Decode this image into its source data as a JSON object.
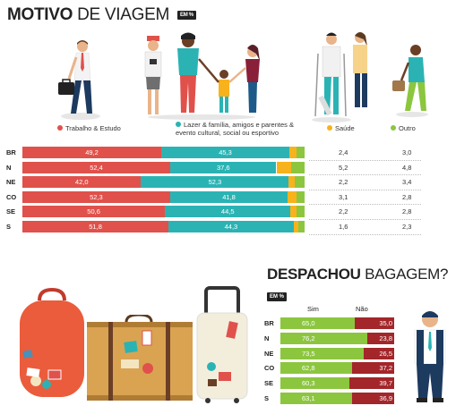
{
  "colors": {
    "trabalho": "#e0514b",
    "lazer": "#2bb3b4",
    "saude": "#f7b21c",
    "outro": "#8cc63f",
    "sim": "#8cc63f",
    "nao": "#a3262a"
  },
  "section1": {
    "title_bold": "MOTIVO",
    "title_light": "DE VIAGEM",
    "badge": "EM %",
    "legend": {
      "trabalho": "Trabalho & Estudo",
      "lazer": "Lazer & família, amigos e parentes & evento cultural, social ou esportivo",
      "saude": "Saúde",
      "outro": "Outro"
    }
  },
  "section2": {
    "title_bold": "DESPACHOU",
    "title_light": "BAGAGEM?",
    "badge": "EM %",
    "col_sim": "Sim",
    "col_nao": "Não"
  },
  "chart_data": [
    {
      "type": "bar",
      "title": "MOTIVO DE VIAGEM",
      "subtitle": "EM %",
      "orientation": "horizontal",
      "stacked": true,
      "categories": [
        "BR",
        "N",
        "NE",
        "CO",
        "SE",
        "S"
      ],
      "series": [
        {
          "name": "Trabalho & Estudo",
          "values": [
            49.2,
            52.4,
            42.0,
            52.3,
            50.6,
            51.8
          ]
        },
        {
          "name": "Lazer & família, amigos e parentes & evento cultural, social ou esportivo",
          "values": [
            45.3,
            37.6,
            52.3,
            41.8,
            44.5,
            44.3
          ]
        },
        {
          "name": "Saúde",
          "values": [
            2.4,
            5.2,
            2.2,
            3.1,
            2.2,
            1.6
          ]
        },
        {
          "name": "Outro",
          "values": [
            3.0,
            4.8,
            3.4,
            2.8,
            2.8,
            2.3
          ]
        }
      ],
      "labels": {
        "trabalho": [
          "49,2",
          "52,4",
          "42,0",
          "52,3",
          "50,6",
          "51,8"
        ],
        "lazer": [
          "45,3",
          "37,6",
          "52,3",
          "41,8",
          "44,5",
          "44,3"
        ],
        "saude": [
          "2,4",
          "5,2",
          "2,2",
          "3,1",
          "2,2",
          "1,6"
        ],
        "outro": [
          "3,0",
          "4,8",
          "3,4",
          "2,8",
          "2,8",
          "2,3"
        ]
      }
    },
    {
      "type": "bar",
      "title": "DESPACHOU BAGAGEM?",
      "subtitle": "EM %",
      "orientation": "horizontal",
      "stacked": true,
      "categories": [
        "BR",
        "N",
        "NE",
        "CO",
        "SE",
        "S"
      ],
      "series": [
        {
          "name": "Sim",
          "values": [
            65.0,
            76.2,
            73.5,
            62.8,
            60.3,
            63.1
          ]
        },
        {
          "name": "Não",
          "values": [
            35.0,
            23.8,
            26.5,
            37.2,
            39.7,
            36.9
          ]
        }
      ],
      "labels": {
        "sim": [
          "65,0",
          "76,2",
          "73,5",
          "62,8",
          "60,3",
          "63,1"
        ],
        "nao": [
          "35,0",
          "23,8",
          "26,5",
          "37,2",
          "39,7",
          "36,9"
        ]
      }
    }
  ]
}
